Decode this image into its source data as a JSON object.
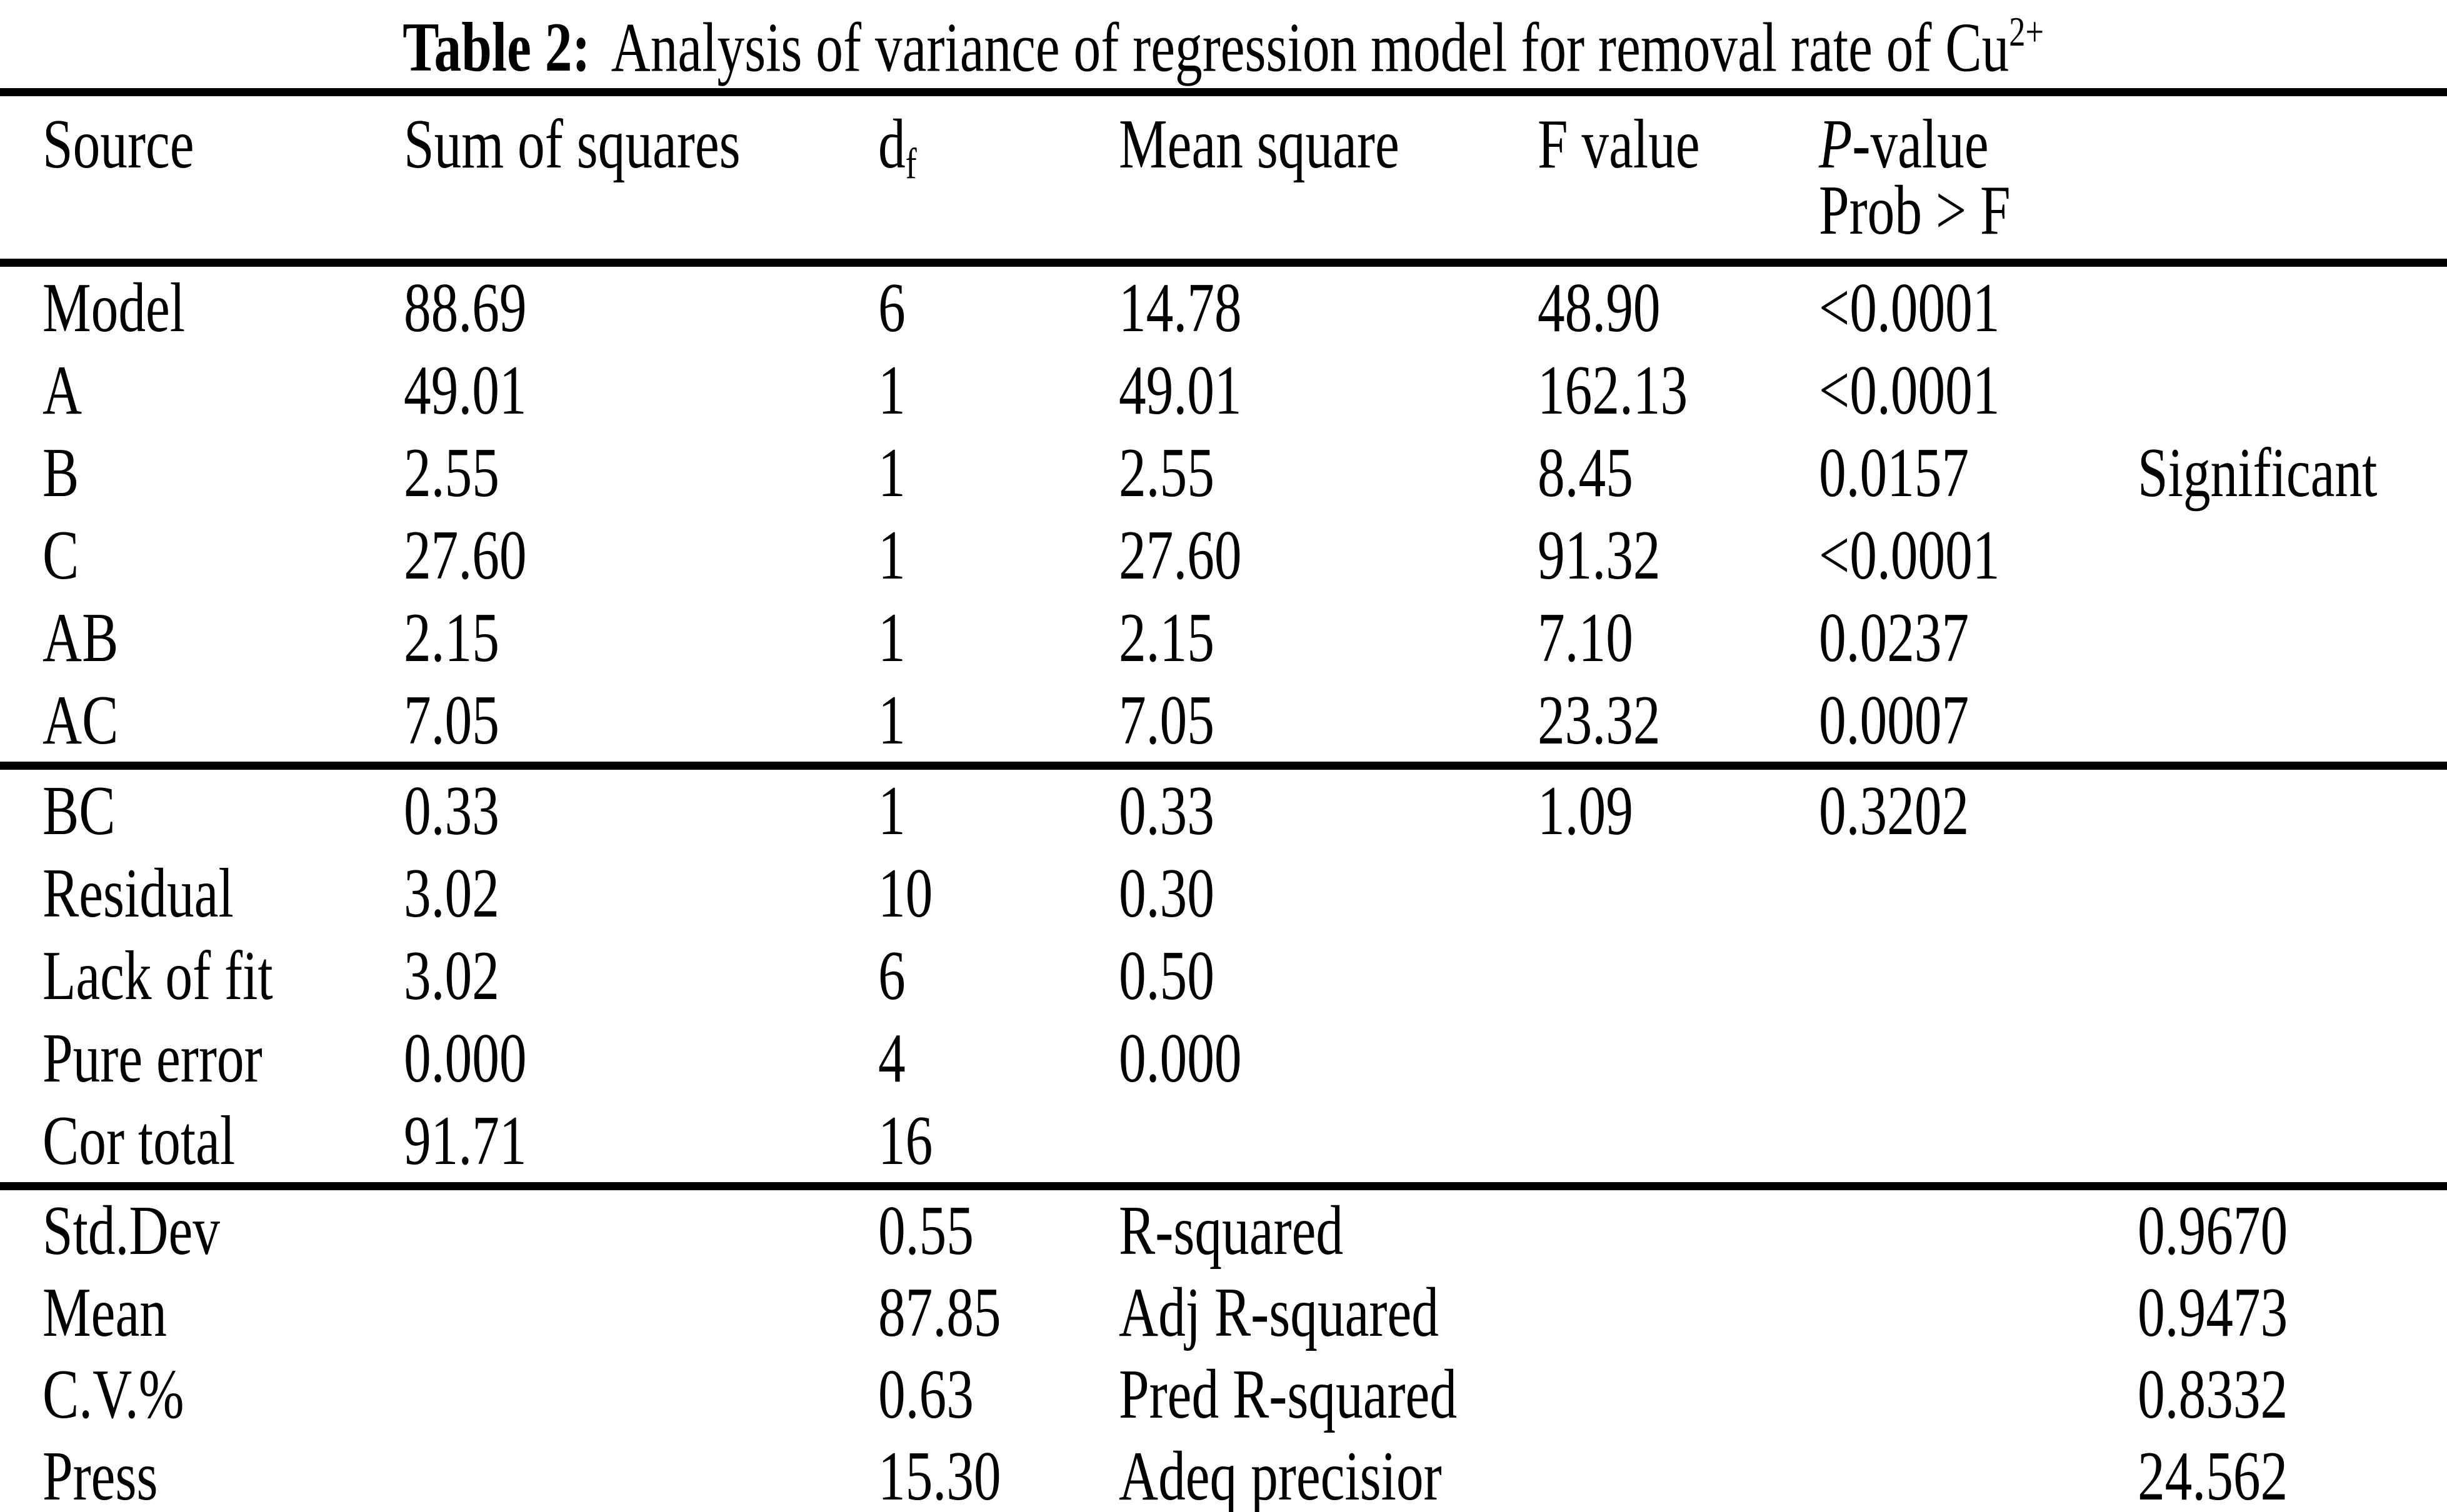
{
  "title": {
    "label": "Table 2:",
    "text": "Analysis of variance of regression model for removal rate of Cu",
    "sup": "2+"
  },
  "header": {
    "source": "Source",
    "ss": "Sum of squares",
    "df_base": "d",
    "df_sub": "f",
    "ms": "Mean square",
    "f": "F value",
    "p1_italic": "P",
    "p1_rest": "-value",
    "p2": "Prob > F",
    "note": ""
  },
  "anova1": [
    {
      "source": "Model",
      "ss": "88.69",
      "df": "6",
      "ms": "14.78",
      "f": "48.90",
      "p": "<0.0001",
      "note": ""
    },
    {
      "source": "A",
      "ss": "49.01",
      "df": "1",
      "ms": "49.01",
      "f": "162.13",
      "p": "<0.0001",
      "note": ""
    },
    {
      "source": "B",
      "ss": "2.55",
      "df": "1",
      "ms": "2.55",
      "f": "8.45",
      "p": "0.0157",
      "note": "Significant"
    },
    {
      "source": "C",
      "ss": "27.60",
      "df": "1",
      "ms": "27.60",
      "f": "91.32",
      "p": "<0.0001",
      "note": ""
    },
    {
      "source": "AB",
      "ss": "2.15",
      "df": "1",
      "ms": "2.15",
      "f": "7.10",
      "p": "0.0237",
      "note": ""
    },
    {
      "source": "AC",
      "ss": "7.05",
      "df": "1",
      "ms": "7.05",
      "f": "23.32",
      "p": "0.0007",
      "note": ""
    }
  ],
  "anova2": [
    {
      "source": "BC",
      "ss": "0.33",
      "df": "1",
      "ms": "0.33",
      "f": "1.09",
      "p": "0.3202",
      "note": ""
    },
    {
      "source": "Residual",
      "ss": "3.02",
      "df": "10",
      "ms": "0.30",
      "f": "",
      "p": "",
      "note": ""
    },
    {
      "source": "Lack of fit",
      "ss": "3.02",
      "df": "6",
      "ms": "0.50",
      "f": "",
      "p": "",
      "note": ""
    },
    {
      "source": "Pure error",
      "ss": "0.000",
      "df": "4",
      "ms": "0.000",
      "f": "",
      "p": "",
      "note": ""
    },
    {
      "source": "Cor total",
      "ss": "91.71",
      "df": "16",
      "ms": "",
      "f": "",
      "p": "",
      "note": ""
    }
  ],
  "summary": [
    {
      "label": "Std.Dev",
      "value": "0.55",
      "label2": "R-squared",
      "value2": "0.9670"
    },
    {
      "label": "Mean",
      "value": "87.85",
      "label2": "Adj R-squared",
      "value2": "0.9473"
    },
    {
      "label": "C.V.%",
      "value": "0.63",
      "label2": "Pred R-squared",
      "value2": "0.8332"
    },
    {
      "label": "Press",
      "value": "15.30",
      "label2": "Adeq precisior",
      "value2": "24.562"
    }
  ]
}
